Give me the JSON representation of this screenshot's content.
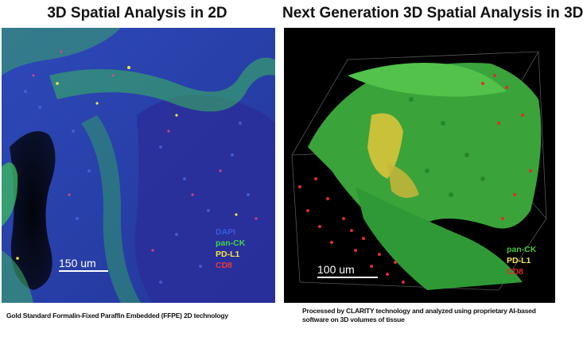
{
  "left_panel": {
    "title": "3D Spatial Analysis in 2D",
    "scale_bar": "150 um",
    "legend": [
      {
        "label": "DAPI",
        "color": "#3a5bd8"
      },
      {
        "label": "pan-CK",
        "color": "#3fd64a"
      },
      {
        "label": "PD-L1",
        "color": "#f2e64a"
      },
      {
        "label": "CD8",
        "color": "#e83a3a"
      }
    ],
    "caption": "Gold Standard Formalin-Fixed Paraffin Embedded (FFPE) 2D technology"
  },
  "right_panel": {
    "title": "Next Generation 3D Spatial Analysis in 3D",
    "scale_bar": "100 um",
    "legend": [
      {
        "label": "pan-CK",
        "color": "#49c23d"
      },
      {
        "label": "PD-L1",
        "color": "#f2e64a"
      },
      {
        "label": "CD8",
        "color": "#e22b2b"
      }
    ],
    "caption": "Processed by CLARITY technology and analyzed using proprietary AI-based software on 3D volumes of tissue"
  }
}
